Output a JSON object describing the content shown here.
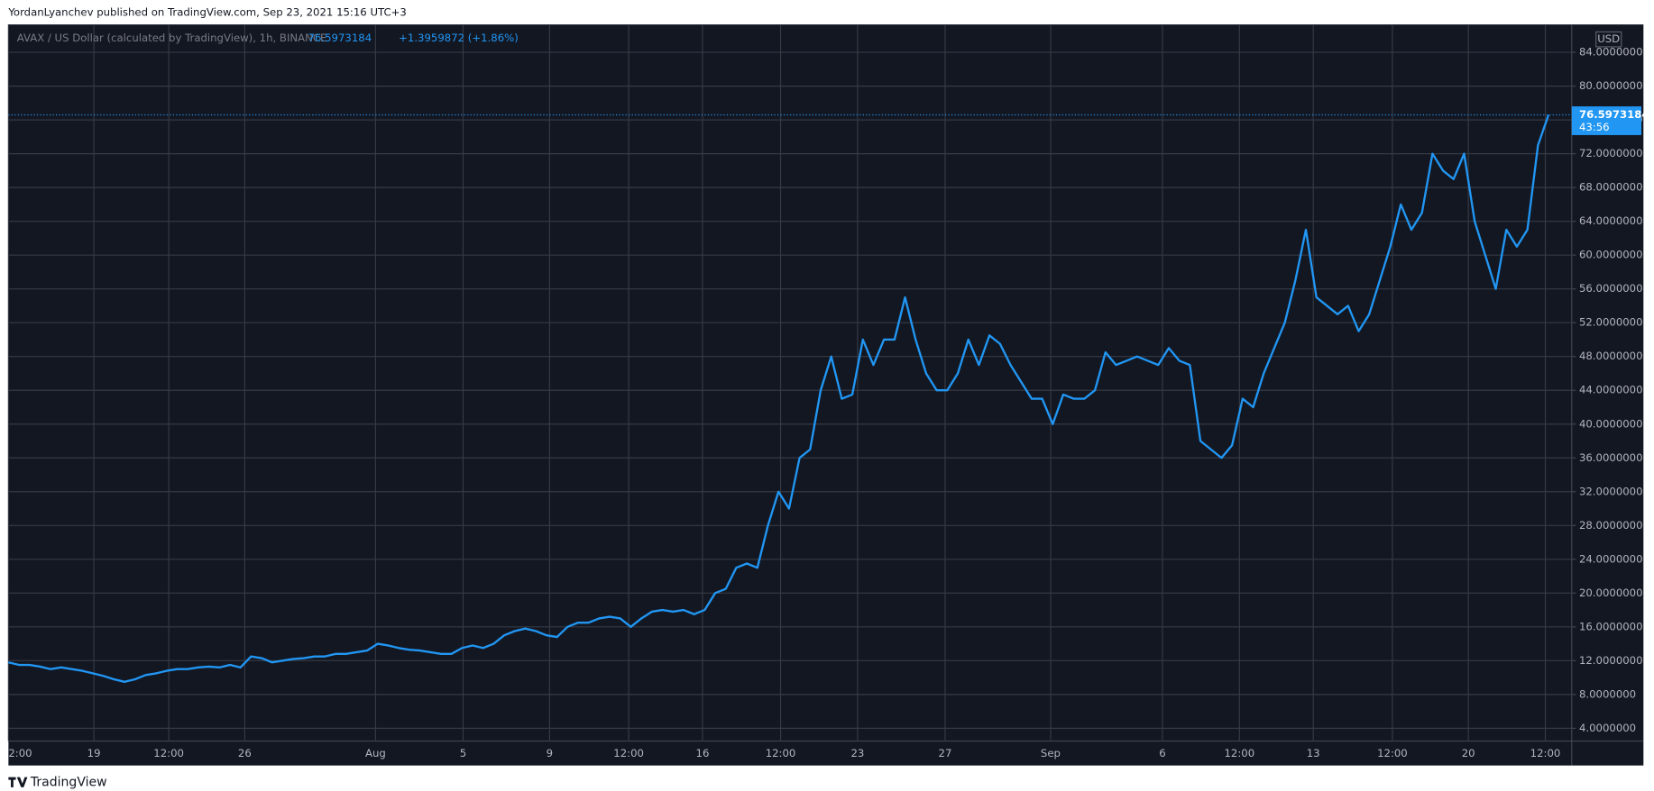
{
  "header": {
    "published": "YordanLyanchev published on TradingView.com, Sep 23, 2021 15:16 UTC+3"
  },
  "footer": {
    "brand": "TradingView"
  },
  "chart_data": {
    "type": "line",
    "title": "AVAX / US Dollar (calculated by TradingView), 1h, BINANCE",
    "change": "+1.3959872 (+1.86%)",
    "currency": "USD",
    "countdown": "43:56",
    "color": "#2196f3",
    "grid": true,
    "values": [
      11.8,
      11.5,
      11.5,
      11.3,
      11.0,
      11.2,
      11.0,
      10.8,
      10.5,
      10.2,
      9.8,
      9.5,
      9.8,
      10.3,
      10.5,
      10.8,
      11.0,
      11.0,
      11.2,
      11.3,
      11.2,
      11.5,
      11.2,
      12.5,
      12.3,
      11.8,
      12.0,
      12.2,
      12.3,
      12.5,
      12.5,
      12.8,
      12.8,
      13.0,
      13.2,
      14.0,
      13.8,
      13.5,
      13.3,
      13.2,
      13.0,
      12.8,
      12.8,
      13.5,
      13.8,
      13.5,
      14.0,
      15.0,
      15.5,
      15.8,
      15.5,
      15.0,
      14.8,
      16.0,
      16.5,
      16.5,
      17.0,
      17.2,
      17.0,
      16.0,
      17.0,
      17.8,
      18.0,
      17.8,
      18.0,
      17.5,
      18.0,
      20.0,
      20.5,
      23.0,
      23.5,
      23.0,
      28.0,
      32.0,
      30.0,
      36.0,
      37.0,
      44.0,
      48.0,
      43.0,
      43.5,
      50.0,
      47.0,
      50.0,
      50.0,
      55.0,
      50.0,
      46.0,
      44.0,
      44.0,
      46.0,
      50.0,
      47.0,
      50.5,
      49.5,
      47.0,
      45.0,
      43.0,
      43.0,
      40.0,
      43.5,
      43.0,
      43.0,
      44.0,
      48.5,
      47.0,
      47.5,
      48.0,
      47.5,
      47.0,
      49.0,
      47.5,
      47.0,
      38.0,
      37.0,
      36.0,
      37.5,
      43.0,
      42.0,
      46.0,
      49.0,
      52.0,
      57.0,
      63.0,
      55.0,
      54.0,
      53.0,
      54.0,
      51.0,
      53.0,
      57.0,
      61.0,
      66.0,
      63.0,
      65.0,
      72.0,
      70.0,
      69.0,
      72.0,
      64.0,
      60.0,
      56.0,
      63.0,
      61.0,
      63.0,
      73.0,
      76.5973184
    ],
    "xlim": [
      0,
      148
    ],
    "xticks": [
      {
        "value": 0,
        "label": "2:00"
      },
      {
        "value": 8.1,
        "label": "19"
      },
      {
        "value": 15.2,
        "label": "12:00"
      },
      {
        "value": 22.4,
        "label": "26"
      },
      {
        "value": 34.8,
        "label": "Aug"
      },
      {
        "value": 43.1,
        "label": "5"
      },
      {
        "value": 51.3,
        "label": "9"
      },
      {
        "value": 58.8,
        "label": "12:00"
      },
      {
        "value": 65.8,
        "label": "16"
      },
      {
        "value": 73.2,
        "label": "12:00"
      },
      {
        "value": 80.5,
        "label": "23"
      },
      {
        "value": 88.8,
        "label": "27"
      },
      {
        "value": 98.8,
        "label": "Sep"
      },
      {
        "value": 109.4,
        "label": "6"
      },
      {
        "value": 116.7,
        "label": "12:00"
      },
      {
        "value": 123.7,
        "label": "13"
      },
      {
        "value": 131.2,
        "label": "12:00"
      },
      {
        "value": 138.4,
        "label": "20"
      },
      {
        "value": 145.7,
        "label": "12:00"
      }
    ],
    "ylim": [
      2.49,
      87.3
    ],
    "yticks": [
      {
        "value": 4,
        "label": "4.0000000"
      },
      {
        "value": 8,
        "label": "8.0000000"
      },
      {
        "value": 12,
        "label": "12.0000000"
      },
      {
        "value": 16,
        "label": "16.0000000"
      },
      {
        "value": 20,
        "label": "20.0000000"
      },
      {
        "value": 24,
        "label": "24.0000000"
      },
      {
        "value": 28,
        "label": "28.0000000"
      },
      {
        "value": 32,
        "label": "32.0000000"
      },
      {
        "value": 36,
        "label": "36.0000000"
      },
      {
        "value": 40,
        "label": "40.0000000"
      },
      {
        "value": 44,
        "label": "44.0000000"
      },
      {
        "value": 48,
        "label": "48.0000000"
      },
      {
        "value": 52,
        "label": "52.0000000"
      },
      {
        "value": 56,
        "label": "56.0000000"
      },
      {
        "value": 60,
        "label": "60.0000000"
      },
      {
        "value": 64,
        "label": "64.0000000"
      },
      {
        "value": 68,
        "label": "68.0000000"
      },
      {
        "value": 72,
        "label": "72.0000000"
      },
      {
        "value": 76,
        "label": "76.0000000"
      },
      {
        "value": 80,
        "label": "80.0000000"
      },
      {
        "value": 84,
        "label": "84.0000000"
      }
    ]
  }
}
